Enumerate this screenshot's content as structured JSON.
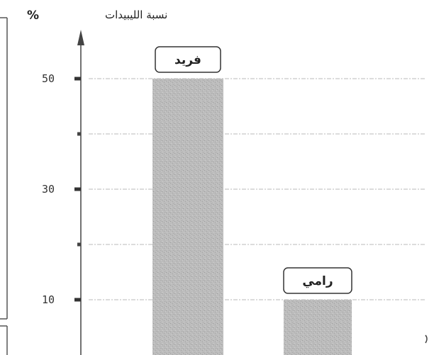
{
  "chart_data": {
    "type": "bar",
    "ylabel": "نسبة الليبيدات",
    "ylabel_unit": "%",
    "categories": [
      "فريد",
      "رامي"
    ],
    "values": [
      50,
      10
    ],
    "ylim": [
      0,
      55
    ],
    "yticks_labeled": [
      10,
      30,
      50
    ],
    "yticks_minor": [
      20,
      40
    ],
    "grid": true,
    "bar_color": "#b8b8b8"
  }
}
